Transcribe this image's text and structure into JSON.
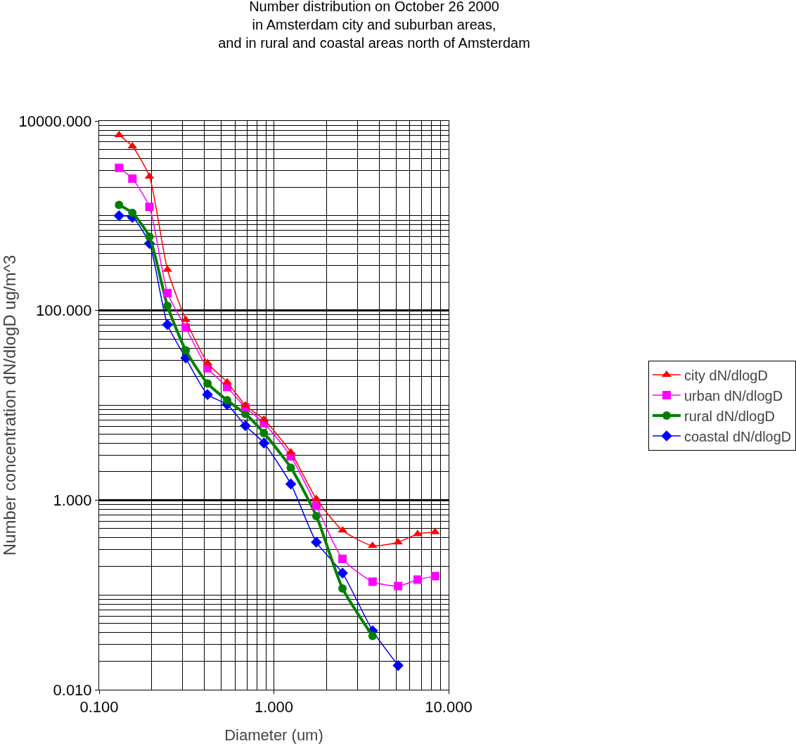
{
  "chart_data": {
    "type": "line",
    "title": "Number distribution on October 26 2000\nin Amsterdam city and suburban areas,\nand in rural and coastal areas north of Amsterdam",
    "xlabel": "Diameter (um)",
    "ylabel": "Number concentration dN/dlogD ug/m^3",
    "log": "xy",
    "grid": true,
    "legend": "right",
    "line_style": "solid",
    "x": [
      0.13,
      0.155,
      0.194,
      0.246,
      0.313,
      0.417,
      0.54,
      0.687,
      0.877,
      1.25,
      1.75,
      2.47,
      3.67,
      5.14,
      6.65,
      8.36
    ],
    "xlim": [
      0.1,
      10
    ],
    "xticks": [
      {
        "value": 0.1,
        "label": "0.100"
      },
      {
        "value": 1,
        "label": "1.000"
      },
      {
        "value": 10,
        "label": "10.000"
      }
    ],
    "ylim": [
      0.01,
      10000
    ],
    "yticks": [
      {
        "value": 0.01,
        "label": "0.010"
      },
      {
        "value": 1,
        "label": "1.000"
      },
      {
        "value": 100,
        "label": "100.000"
      },
      {
        "value": 10000,
        "label": "10000.000"
      }
    ],
    "series": [
      {
        "name": "city dN/dlogD",
        "color": "#ff0000",
        "marker": "triangle",
        "values": [
          7100,
          5400,
          2600,
          270,
          80,
          28,
          17.6,
          10,
          7.1,
          3.2,
          1.03,
          0.48,
          0.33,
          0.36,
          0.44,
          0.46
        ]
      },
      {
        "name": "urban dN/dlogD",
        "color": "#ff00ff",
        "marker": "square",
        "values": [
          3200,
          2460,
          1240,
          153,
          66,
          24.6,
          15.6,
          9.5,
          6.5,
          2.9,
          0.87,
          0.24,
          0.138,
          0.124,
          0.145,
          0.158
        ]
      },
      {
        "name": "rural dN/dlogD",
        "color": "#008000",
        "marker": "circle",
        "values": [
          1300,
          1070,
          600,
          112,
          38,
          17,
          11.3,
          8.1,
          5.1,
          2.2,
          0.68,
          0.117,
          0.037,
          null,
          null,
          null
        ]
      },
      {
        "name": "coastal dN/dlogD",
        "color": "#0000ff",
        "marker": "diamond",
        "values": [
          1000,
          960,
          510,
          71,
          31.6,
          13,
          10.2,
          6.1,
          4.0,
          1.48,
          0.36,
          0.17,
          0.042,
          0.018,
          null,
          null
        ]
      }
    ]
  }
}
